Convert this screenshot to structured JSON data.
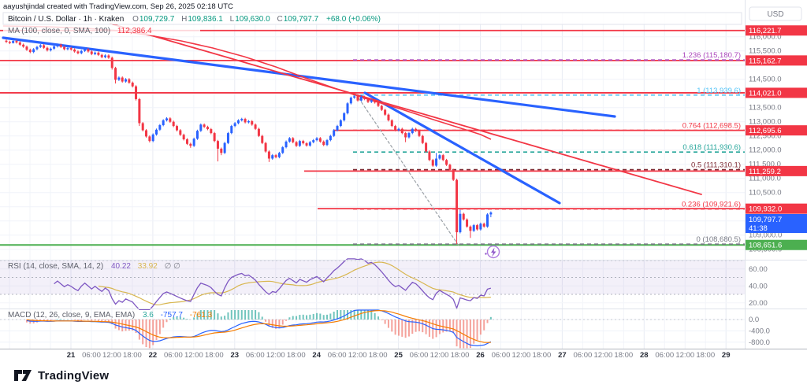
{
  "watermark": "aayushjindal created with TradingView.com, Sep 26, 2025 02:18 UTC",
  "toolbar": {
    "currency_label": "USD"
  },
  "symbol_legend": {
    "title": "Bitcoin / U.S. Dollar · 1h · Kraken",
    "o_label": "O",
    "o": "109,729.7",
    "h_label": "H",
    "h": "109,836.1",
    "l_label": "L",
    "l": "109,630.0",
    "c_label": "C",
    "c": "109,797.7",
    "change": "+68.0 (+0.06%)"
  },
  "ma_legend": {
    "label": "MA (100, close, 0, SMA, 100)",
    "value": "112,386.4"
  },
  "rsi_legend": {
    "label": "RSI (14, close, SMA, 14, 2)",
    "value": "40.22",
    "ma_value": "33.92",
    "hidden": "∅ ∅"
  },
  "macd_legend": {
    "label": "MACD (12, 26, close, 9, EMA, EMA)",
    "hist": "3.6",
    "macd": "-757.7",
    "signal": "-761.3"
  },
  "footer": {
    "brand": "TradingView"
  },
  "price_axis": {
    "ticks": [
      {
        "v": 116000,
        "t": "116,000.0"
      },
      {
        "v": 115500,
        "t": "115,500.0"
      },
      {
        "v": 114500,
        "t": "114,500.0"
      },
      {
        "v": 113500,
        "t": "113,500.0"
      },
      {
        "v": 113000,
        "t": "113,000.0"
      },
      {
        "v": 112500,
        "t": "112,500.0"
      },
      {
        "v": 112000,
        "t": "112,000.0"
      },
      {
        "v": 111500,
        "t": "111,500.0"
      },
      {
        "v": 111000,
        "t": "111,000.0"
      },
      {
        "v": 110500,
        "t": "110,500.0"
      },
      {
        "v": 109000,
        "t": "109,000.0"
      },
      {
        "v": 108500,
        "t": "108,500.0"
      }
    ],
    "chips": [
      {
        "price": 116221.7,
        "label": "116,221.7",
        "kind": "red"
      },
      {
        "price": 115162.7,
        "label": "115,162.7",
        "kind": "red"
      },
      {
        "price": 114021.0,
        "label": "114,021.0",
        "kind": "red"
      },
      {
        "price": 112695.6,
        "label": "112,695.6",
        "kind": "red"
      },
      {
        "price": 111259.2,
        "label": "111,259.2",
        "kind": "red"
      },
      {
        "price": 109932.0,
        "label": "109,932.0",
        "kind": "red"
      },
      {
        "price": 109797.7,
        "label": "109,797.7",
        "countdown": "41:38",
        "kind": "blue"
      },
      {
        "price": 108651.6,
        "label": "108,651.6",
        "kind": "green"
      }
    ]
  },
  "rsi_axis": [
    {
      "v": 60,
      "t": "60.00"
    },
    {
      "v": 40,
      "t": "40.00"
    },
    {
      "v": 20,
      "t": "20.00"
    }
  ],
  "macd_axis": [
    {
      "v": 0,
      "t": "0.0"
    },
    {
      "v": -400,
      "t": "-400.0"
    },
    {
      "v": -800,
      "t": "-800.0"
    }
  ],
  "time_axis": {
    "day_labels": [
      "21",
      "22",
      "23",
      "24",
      "25",
      "26",
      "27",
      "28",
      "29"
    ],
    "intraday_labels": [
      "06:00",
      "12:00",
      "18:00"
    ]
  },
  "colors": {
    "up": "#2962ff",
    "down": "#f23645",
    "ma": "#f23645",
    "ray": "#f23645",
    "support": "#4caf50",
    "rsi": "#7e57c2",
    "rsi_ma": "#d8b64f",
    "macd": "#2962ff",
    "signal": "#f57c00",
    "hist_pos": "#4db6ac",
    "hist_neg": "#f28b82",
    "chip_red": "#f23645",
    "chip_blue": "#2962ff",
    "chip_green": "#4caf50",
    "value_green": "#089981"
  },
  "chart_data": {
    "type": "candlestick",
    "title": "Bitcoin / U.S. Dollar",
    "interval": "1h",
    "exchange": "Kraken",
    "ylim": [
      108300,
      116400
    ],
    "legend_ohlc": {
      "open": 109729.7,
      "high": 109836.1,
      "low": 109630.0,
      "close": 109797.7,
      "change": "+68.0 (+0.06%)"
    },
    "candles": [
      [
        115860,
        115900,
        115780,
        115820
      ],
      [
        115820,
        115860,
        115740,
        115780
      ],
      [
        115780,
        115900,
        115760,
        115850
      ],
      [
        115850,
        115890,
        115760,
        115800
      ],
      [
        115800,
        115840,
        115680,
        115720
      ],
      [
        115720,
        115760,
        115610,
        115650
      ],
      [
        115650,
        115690,
        115500,
        115540
      ],
      [
        115540,
        115580,
        115420,
        115460
      ],
      [
        115460,
        115600,
        115420,
        115560
      ],
      [
        115560,
        115680,
        115520,
        115640
      ],
      [
        115640,
        115740,
        115600,
        115700
      ],
      [
        115700,
        115740,
        115570,
        115610
      ],
      [
        115610,
        115650,
        115480,
        115520
      ],
      [
        115520,
        115620,
        115480,
        115580
      ],
      [
        115580,
        115700,
        115540,
        115660
      ],
      [
        115660,
        115760,
        115620,
        115720
      ],
      [
        115720,
        115760,
        115600,
        115640
      ],
      [
        115640,
        115680,
        115520,
        115560
      ],
      [
        115560,
        115640,
        115520,
        115600
      ],
      [
        115600,
        115640,
        115510,
        115550
      ],
      [
        115550,
        115590,
        115440,
        115480
      ],
      [
        115480,
        115520,
        115380,
        115420
      ],
      [
        115420,
        115540,
        115380,
        115500
      ],
      [
        115500,
        115600,
        115460,
        115560
      ],
      [
        115560,
        115600,
        115440,
        115480
      ],
      [
        115480,
        115520,
        115350,
        115390
      ],
      [
        115390,
        115480,
        115350,
        115440
      ],
      [
        115440,
        115480,
        115320,
        115360
      ],
      [
        115360,
        115400,
        115240,
        115280
      ],
      [
        115280,
        115380,
        115240,
        115340
      ],
      [
        115340,
        115380,
        115220,
        115260
      ],
      [
        115260,
        115300,
        114840,
        114900
      ],
      [
        114900,
        114940,
        114350,
        114480
      ],
      [
        114480,
        114600,
        114440,
        114560
      ],
      [
        114560,
        114600,
        114380,
        114420
      ],
      [
        114420,
        114540,
        114380,
        114500
      ],
      [
        114500,
        114540,
        114340,
        114380
      ],
      [
        114380,
        114420,
        114210,
        114250
      ],
      [
        114250,
        114290,
        113750,
        113800
      ],
      [
        113800,
        113840,
        112850,
        112950
      ],
      [
        112950,
        112990,
        112660,
        112700
      ],
      [
        112700,
        112740,
        112440,
        112480
      ],
      [
        112480,
        112520,
        112270,
        112320
      ],
      [
        112320,
        112590,
        112280,
        112550
      ],
      [
        112550,
        112760,
        112510,
        112720
      ],
      [
        112720,
        112920,
        112680,
        112880
      ],
      [
        112880,
        113090,
        112840,
        113050
      ],
      [
        113050,
        113160,
        113010,
        113120
      ],
      [
        113120,
        113160,
        112960,
        113000
      ],
      [
        113000,
        113040,
        112810,
        112850
      ],
      [
        112850,
        112890,
        112660,
        112700
      ],
      [
        112700,
        112740,
        112500,
        112540
      ],
      [
        112540,
        112580,
        112340,
        112380
      ],
      [
        112380,
        112420,
        112180,
        112220
      ],
      [
        112220,
        112260,
        112080,
        112150
      ],
      [
        112150,
        112440,
        112110,
        112400
      ],
      [
        112400,
        112720,
        112360,
        112680
      ],
      [
        112680,
        112940,
        112640,
        112900
      ],
      [
        112900,
        112940,
        112780,
        112820
      ],
      [
        112820,
        112860,
        112700,
        112740
      ],
      [
        112740,
        112780,
        112560,
        112600
      ],
      [
        112600,
        112640,
        112280,
        112320
      ],
      [
        112320,
        112360,
        111600,
        112050
      ],
      [
        112050,
        112090,
        111820,
        111900
      ],
      [
        111900,
        112290,
        111860,
        112250
      ],
      [
        112250,
        112640,
        112210,
        112600
      ],
      [
        112600,
        112890,
        112560,
        112850
      ],
      [
        112850,
        112990,
        112810,
        112950
      ],
      [
        112950,
        113090,
        112910,
        113050
      ],
      [
        113050,
        113140,
        113010,
        113100
      ],
      [
        113100,
        113140,
        112940,
        112980
      ],
      [
        112980,
        113060,
        112940,
        113020
      ],
      [
        113020,
        113060,
        112860,
        112900
      ],
      [
        112900,
        112940,
        112710,
        112750
      ],
      [
        112750,
        112790,
        112460,
        112500
      ],
      [
        112500,
        112540,
        112210,
        112250
      ],
      [
        112250,
        112290,
        111910,
        111950
      ],
      [
        111950,
        111990,
        111580,
        111700
      ],
      [
        111700,
        111860,
        111660,
        111820
      ],
      [
        111820,
        111860,
        111710,
        111750
      ],
      [
        111750,
        111940,
        111710,
        111900
      ],
      [
        111900,
        112140,
        111860,
        112100
      ],
      [
        112100,
        112340,
        112060,
        112300
      ],
      [
        112300,
        112460,
        112260,
        112420
      ],
      [
        112420,
        112460,
        112240,
        112280
      ],
      [
        112280,
        112320,
        112110,
        112150
      ],
      [
        112150,
        112360,
        112110,
        112320
      ],
      [
        112320,
        112360,
        112200,
        112240
      ],
      [
        112240,
        112280,
        112120,
        112160
      ],
      [
        112160,
        112320,
        112120,
        112280
      ],
      [
        112280,
        112390,
        112240,
        112350
      ],
      [
        112350,
        112460,
        112310,
        112420
      ],
      [
        112420,
        112460,
        112260,
        112300
      ],
      [
        112300,
        112340,
        112140,
        112180
      ],
      [
        112180,
        112390,
        112140,
        112350
      ],
      [
        112350,
        112540,
        112310,
        112500
      ],
      [
        112500,
        112740,
        112460,
        112700
      ],
      [
        112700,
        112890,
        112660,
        112850
      ],
      [
        112850,
        113090,
        112810,
        113050
      ],
      [
        113050,
        113340,
        113010,
        113300
      ],
      [
        113300,
        113690,
        113260,
        113650
      ],
      [
        113650,
        113890,
        113610,
        113850
      ],
      [
        113850,
        113930,
        113810,
        113900
      ],
      [
        113900,
        113940,
        113710,
        113750
      ],
      [
        113750,
        113940,
        113710,
        113880
      ],
      [
        113880,
        113920,
        113760,
        113800
      ],
      [
        113800,
        113840,
        113660,
        113700
      ],
      [
        113700,
        113800,
        113660,
        113760
      ],
      [
        113760,
        113800,
        113640,
        113680
      ],
      [
        113680,
        113720,
        113520,
        113560
      ],
      [
        113560,
        113600,
        113380,
        113420
      ],
      [
        113420,
        113460,
        113210,
        113250
      ],
      [
        113250,
        113290,
        113010,
        113050
      ],
      [
        113050,
        113090,
        112810,
        112850
      ],
      [
        112850,
        112890,
        112660,
        112700
      ],
      [
        112700,
        112790,
        112660,
        112750
      ],
      [
        112750,
        112790,
        112560,
        112600
      ],
      [
        112600,
        112640,
        112280,
        112450
      ],
      [
        112450,
        112640,
        112410,
        112600
      ],
      [
        112600,
        112790,
        112560,
        112750
      ],
      [
        112750,
        112790,
        112640,
        112680
      ],
      [
        112680,
        112720,
        112460,
        112500
      ],
      [
        112500,
        112540,
        112210,
        112250
      ],
      [
        112250,
        112290,
        111910,
        111950
      ],
      [
        111950,
        111990,
        111610,
        111650
      ],
      [
        111650,
        111690,
        111410,
        111450
      ],
      [
        111450,
        111900,
        111410,
        111700
      ],
      [
        111700,
        111860,
        111660,
        111820
      ],
      [
        111820,
        111860,
        111610,
        111650
      ],
      [
        111650,
        111690,
        111440,
        111480
      ],
      [
        111480,
        111520,
        111260,
        111300
      ],
      [
        111300,
        111340,
        110910,
        110950
      ],
      [
        110950,
        110990,
        108680,
        109100
      ],
      [
        109100,
        109890,
        109060,
        109750
      ],
      [
        109750,
        109790,
        109510,
        109550
      ],
      [
        109550,
        109590,
        109260,
        109300
      ],
      [
        109300,
        109340,
        108900,
        109150
      ],
      [
        109150,
        109390,
        109110,
        109350
      ],
      [
        109350,
        109390,
        109160,
        109200
      ],
      [
        109200,
        109440,
        109160,
        109400
      ],
      [
        109400,
        109440,
        109260,
        109300
      ],
      [
        109300,
        109770,
        109260,
        109730
      ],
      [
        109729.7,
        109836.1,
        109630,
        109797.7
      ]
    ],
    "rays": [
      {
        "price": 116221.7,
        "x_start": 0
      },
      {
        "price": 115162.7,
        "x_start": 0
      },
      {
        "price": 114021.0,
        "x_start": 0
      },
      {
        "price": 112695.6,
        "x_start": 424
      },
      {
        "price": 111259.2,
        "x_start": 386
      },
      {
        "price": 109932.0,
        "x_start": 403
      }
    ],
    "support_line": {
      "price": 108651.6,
      "x_start": 0
    },
    "fib": {
      "x_start": 448,
      "levels": [
        {
          "ratio": "1.236",
          "price": 115180.7,
          "label": "1.236 (115,180.7)",
          "color": "#ab47bc"
        },
        {
          "ratio": "1",
          "price": 113939.6,
          "label": "1 (113,939.6)",
          "color": "#4fc3f7"
        },
        {
          "ratio": "0.764",
          "price": 112698.5,
          "label": "0.764 (112,698.5)",
          "color": "#f23645"
        },
        {
          "ratio": "0.618",
          "price": 111930.6,
          "label": "0.618 (111,930.6)",
          "color": "#26a69a"
        },
        {
          "ratio": "0.5",
          "price": 111310.1,
          "label": "0.5 (111,310.1)",
          "color": "#7e2a33"
        },
        {
          "ratio": "0.236",
          "price": 109921.6,
          "label": "0.236 (109,921.6)",
          "color": "#f23645"
        },
        {
          "ratio": "0",
          "price": 108680.5,
          "label": "0 (108,680.5)",
          "color": "#787b86"
        }
      ]
    },
    "trendlines": [
      {
        "name": "long-downtrend-line",
        "x1": 4,
        "y1": 48,
        "x2": 780,
        "y2": 148,
        "color": "#2962ff",
        "width": 3.2,
        "dash": ""
      },
      {
        "name": "short-downtrend-line",
        "x1": 463,
        "y1": 118,
        "x2": 710,
        "y2": 258,
        "color": "#2962ff",
        "width": 3.2,
        "dash": ""
      },
      {
        "name": "red-resistance-trendline",
        "x1": 140,
        "y1": 30,
        "x2": 890,
        "y2": 247,
        "color": "#f23645",
        "width": 1.8,
        "dash": ""
      },
      {
        "name": "fib-baseline",
        "x1": 452,
        "y1": 120,
        "x2": 582,
        "y2": 312,
        "color": "#9aa0a6",
        "width": 1.2,
        "dash": "3,3"
      }
    ],
    "ma_curve": [
      [
        4,
        33
      ],
      [
        60,
        34
      ],
      [
        110,
        36
      ],
      [
        150,
        39
      ],
      [
        190,
        45
      ],
      [
        230,
        52
      ],
      [
        270,
        61
      ],
      [
        310,
        72
      ],
      [
        350,
        85
      ],
      [
        390,
        100
      ],
      [
        430,
        114
      ],
      [
        470,
        127
      ],
      [
        510,
        139
      ],
      [
        550,
        152
      ],
      [
        585,
        163
      ],
      [
        610,
        171
      ],
      [
        623,
        177
      ]
    ],
    "indicators": {
      "rsi": {
        "period": 14,
        "ma_period": 14,
        "overbought": 70,
        "middle": 50,
        "oversold": 30,
        "last": 40.22,
        "ma_last": 33.92
      },
      "macd": {
        "fast": 12,
        "slow": 26,
        "signal": 9,
        "last_hist": 3.6,
        "last_macd": -757.7,
        "last_signal": -761.3
      }
    }
  }
}
